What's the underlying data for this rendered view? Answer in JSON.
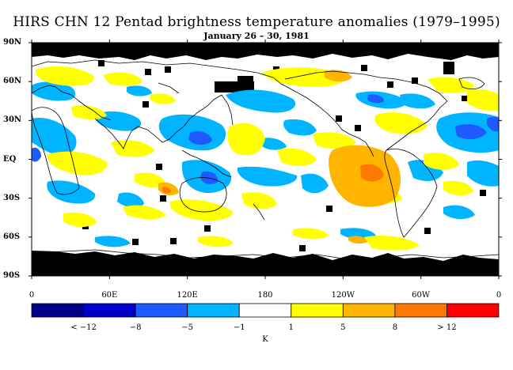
{
  "title": "HIRS CHN 12 Pentad brightness temperature anomalies (1979–1995)",
  "subtitle": "January 26 – 30, 1981",
  "lat_axis_labels": [
    "90N",
    "60N",
    "30N",
    "EQ",
    "30S",
    "60S",
    "90S"
  ],
  "lon_axis_labels": [
    "0",
    "60E",
    "120E",
    "180",
    "120W",
    "60W",
    "0"
  ],
  "map_extent": {
    "lon_range": [
      0,
      360
    ],
    "lat_range": [
      -90,
      90
    ]
  },
  "colorbar": {
    "unit": "K",
    "tick_labels": [
      "< −12",
      "−8",
      "−5",
      "−1",
      "1",
      "5",
      "8",
      "> 12"
    ],
    "colors": [
      "#00008b",
      "#0000cd",
      "#1e5aff",
      "#00b4ff",
      "#ffffff",
      "#ffff00",
      "#ffb400",
      "#ff7800",
      "#ff0000"
    ]
  },
  "missing_data_color": "#000000",
  "coastline_color": "#000000"
}
